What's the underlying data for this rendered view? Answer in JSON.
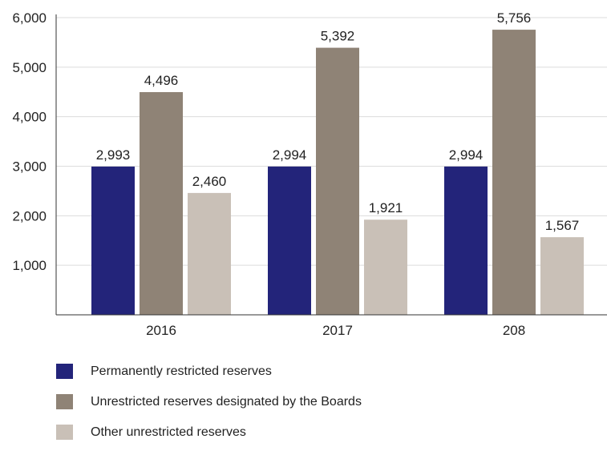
{
  "chart_data": {
    "type": "bar",
    "categories": [
      "2016",
      "2017",
      "208"
    ],
    "series": [
      {
        "name": "Permanently restricted reserves",
        "values": [
          2993,
          2994,
          2994
        ],
        "labels": [
          "2,993",
          "2,994",
          "2,994"
        ],
        "color": "#23247a"
      },
      {
        "name": "Unrestricted reserves designated by the Boards",
        "values": [
          4496,
          5392,
          5756
        ],
        "labels": [
          "4,496",
          "5,392",
          "5,756"
        ],
        "color": "#8f8376"
      },
      {
        "name": "Other unrestricted reserves",
        "values": [
          2460,
          1921,
          1567
        ],
        "labels": [
          "2,460",
          "1,921",
          "1,567"
        ],
        "color": "#c9c0b7"
      }
    ],
    "yticks": [
      {
        "value": 1000,
        "label": "1,000"
      },
      {
        "value": 2000,
        "label": "2,000"
      },
      {
        "value": 3000,
        "label": "3,000"
      },
      {
        "value": 4000,
        "label": "4,000"
      },
      {
        "value": 5000,
        "label": "5,000"
      },
      {
        "value": 6000,
        "label": "6,000"
      }
    ],
    "ylim": [
      0,
      6000
    ],
    "grid": true,
    "legend_position": "bottom",
    "title": "",
    "xlabel": "",
    "ylabel": ""
  }
}
